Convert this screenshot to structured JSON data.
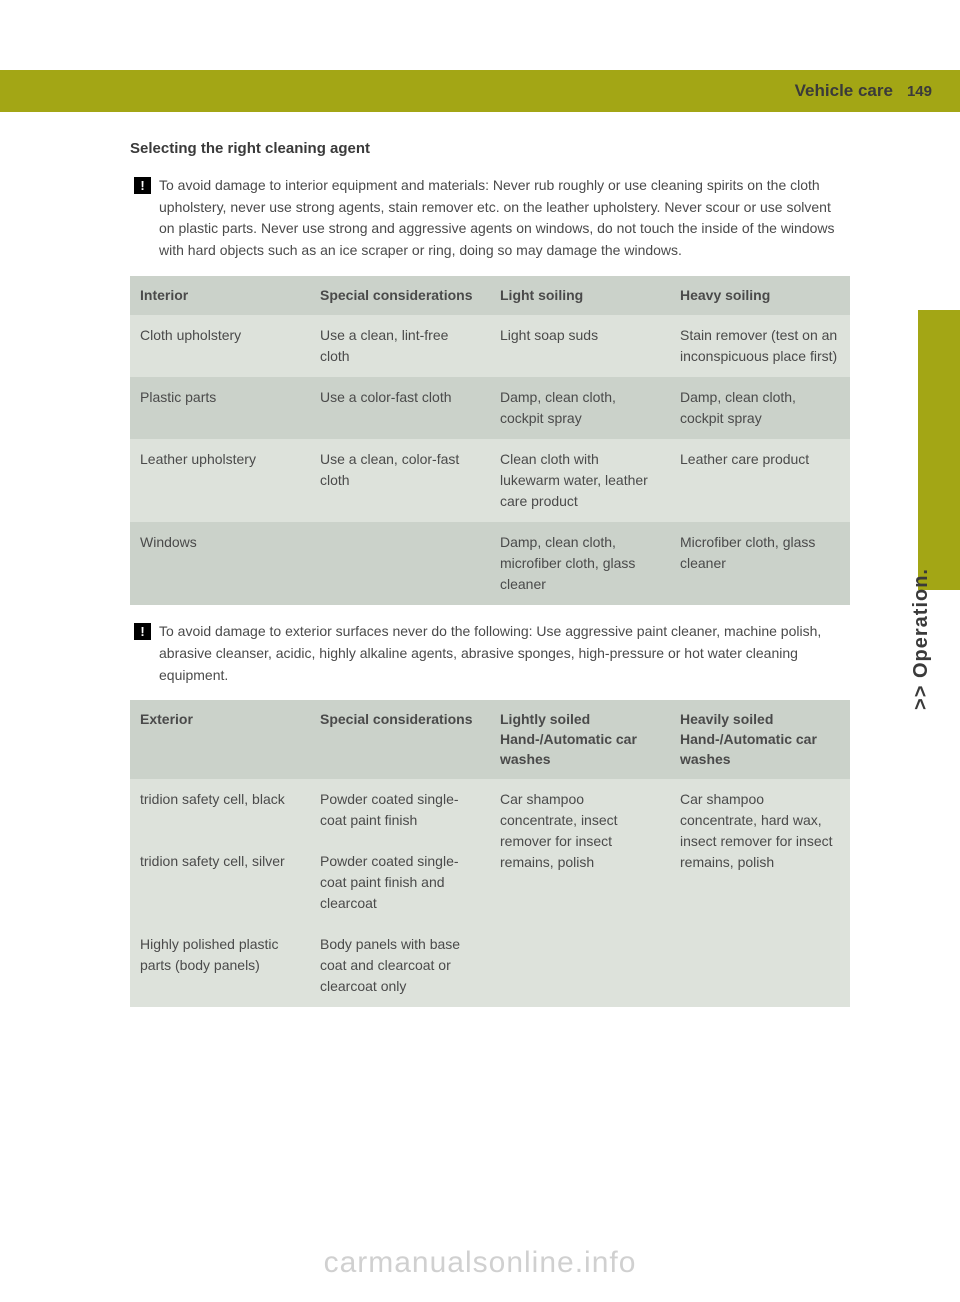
{
  "header": {
    "title": "Vehicle care",
    "page_number": "149",
    "bar_color": "#a3a615"
  },
  "side_tab": {
    "label": ">> Operation.",
    "bg_color": "#a3a615"
  },
  "section_title": "Selecting the right cleaning agent",
  "notice1": {
    "icon": "!",
    "text": "To avoid damage to interior equipment and materials: Never rub roughly or use cleaning spirits on the cloth upholstery, never use strong agents, stain remover etc. on the leather upholstery. Never scour or use solvent on plastic parts. Never use strong and aggressive agents on windows, do not touch the inside of the windows with hard objects such as an ice scraper or ring, doing so may damage the windows."
  },
  "table1": {
    "headers": [
      "Interior",
      "Special considerations",
      "Light soiling",
      "Heavy soiling"
    ],
    "rows": [
      [
        "Cloth upholstery",
        "Use a clean, lint-free cloth",
        "Light soap suds",
        "Stain remover (test on an inconspicuous place first)"
      ],
      [
        "Plastic parts",
        "Use a color-fast cloth",
        "Damp, clean cloth, cockpit spray",
        "Damp, clean cloth, cockpit spray"
      ],
      [
        "Leather upholstery",
        "Use a clean, color-fast cloth",
        "Clean cloth with lukewarm water, leather care product",
        "Leather care product"
      ],
      [
        "Windows",
        "",
        "Damp, clean cloth, microfiber cloth, glass cleaner",
        "Microfiber cloth, glass cleaner"
      ]
    ],
    "header_bg": "#cbd2ca",
    "row_a_bg": "#dde2db",
    "row_b_bg": "#cbd2ca"
  },
  "notice2": {
    "icon": "!",
    "text": "To avoid damage to exterior surfaces never do the following: Use aggressive paint cleaner, machine polish, abrasive cleanser, acidic, highly alkaline agents, abrasive sponges, high-pressure or hot water cleaning equipment."
  },
  "table2": {
    "headers": [
      "Exterior",
      "Special considerations",
      "Lightly soiled Hand-/Automatic car washes",
      "Heavily soiled Hand-/Automatic car washes"
    ],
    "header_parts": {
      "col3_line1": "Lightly soiled",
      "col3_line2": "Hand-/Automatic car washes",
      "col4_line1": "Heavily soiled",
      "col4_line2": "Hand-/Automatic car washes"
    },
    "rows": [
      {
        "c1": "tridion safety cell, black",
        "c2": "Powder coated single-coat paint finish"
      },
      {
        "c1": "tridion safety cell, silver",
        "c2": "Powder coated single-coat paint finish and clearcoat"
      },
      {
        "c1": "Highly polished plastic parts (body panels)",
        "c2": "Body panels with base coat and clearcoat or clearcoat only"
      }
    ],
    "merged_col3": "Car shampoo concentrate, insect remover for insect remains, polish",
    "merged_col4": "Car shampoo concentrate, hard wax, insect remover for insect remains, polish"
  },
  "watermark": "carmanualsonline.info"
}
